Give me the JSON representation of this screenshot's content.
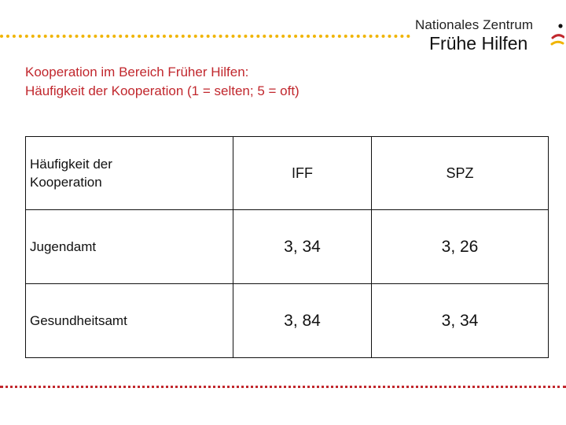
{
  "header": {
    "logo_line1": "Nationales Zentrum",
    "logo_line2": "Frühe Hilfen"
  },
  "title": {
    "line1": "Kooperation im Bereich Früher Hilfen:",
    "line2": "Häufigkeit der Kooperation (1 = selten; 5 = oft)"
  },
  "table": {
    "header": {
      "label_line1": "Häufigkeit der",
      "label_line2": "Kooperation",
      "col1": "IFF",
      "col2": "SPZ"
    },
    "rows": [
      {
        "label": "Jugendamt",
        "iff": "3, 34",
        "spz": "3, 26"
      },
      {
        "label": "Gesundheitsamt",
        "iff": "3, 84",
        "spz": "3, 34"
      }
    ]
  },
  "colors": {
    "title": "#c1272d",
    "dotted_top": "#f0b400",
    "dotted_bottom": "#c1272d",
    "logo_mark_black": "#111111",
    "logo_mark_red": "#c1272d",
    "logo_mark_gold": "#f0b400"
  }
}
